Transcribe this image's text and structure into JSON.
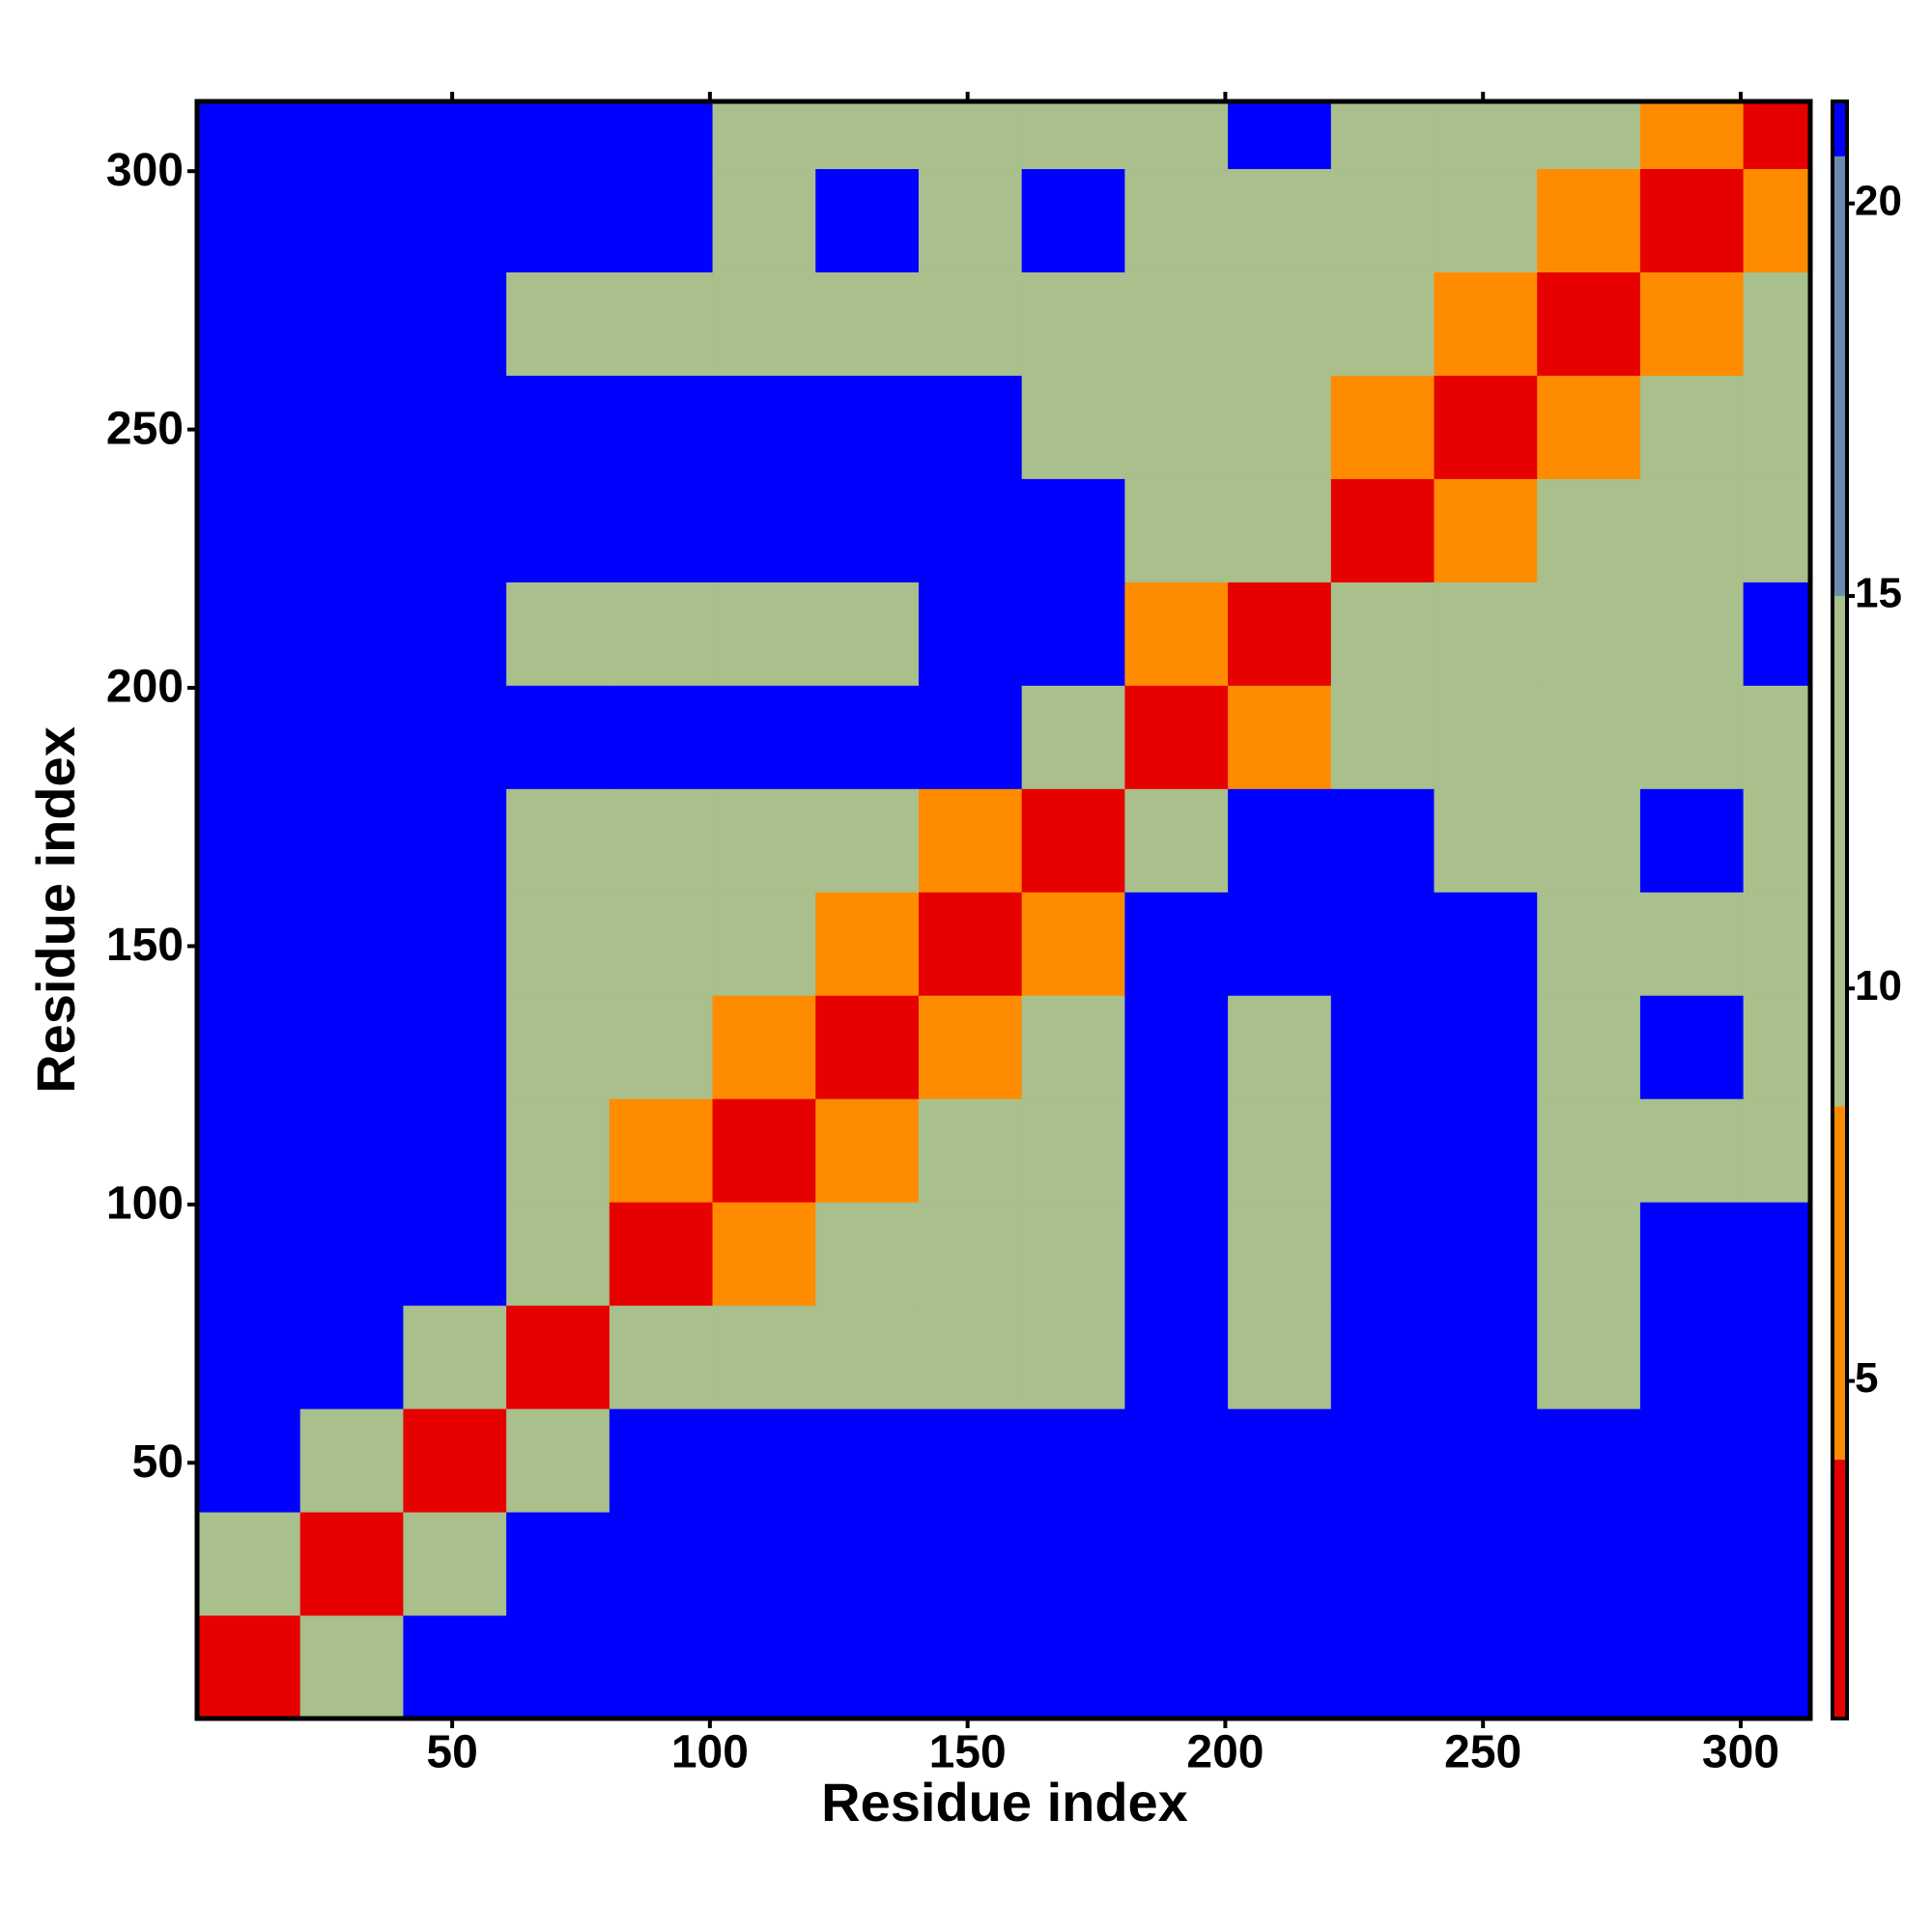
{
  "chart_data": {
    "type": "heatmap",
    "xlabel": "Residue index",
    "ylabel": "Residue index",
    "x_bins": [
      0.5,
      20.5,
      40.5,
      60.5,
      80.5,
      100.5,
      120.5,
      140.5,
      160.5,
      180.5,
      200.5,
      220.5,
      240.5,
      260.5,
      280.5,
      300.5,
      313.5
    ],
    "y_bins": [
      0.5,
      20.5,
      40.5,
      60.5,
      80.5,
      100.5,
      120.5,
      140.5,
      160.5,
      180.5,
      200.5,
      220.5,
      240.5,
      260.5,
      280.5,
      300.5,
      313.5
    ],
    "values": [
      [
        2,
        14,
        21,
        21,
        21,
        21,
        21,
        21,
        21,
        21,
        21,
        21,
        21,
        21,
        21,
        21
      ],
      [
        14,
        2,
        10,
        21,
        21,
        21,
        21,
        21,
        21,
        21,
        21,
        21,
        21,
        21,
        21,
        21
      ],
      [
        21,
        10,
        2,
        14,
        21,
        21,
        21,
        21,
        21,
        21,
        21,
        21,
        21,
        21,
        21,
        21
      ],
      [
        21,
        21,
        14,
        2,
        10,
        12,
        12,
        14,
        14,
        21,
        13,
        21,
        21,
        14,
        21,
        21
      ],
      [
        21,
        21,
        21,
        10,
        2,
        8,
        12,
        14,
        13,
        21,
        14,
        21,
        21,
        14,
        21,
        21
      ],
      [
        21,
        21,
        21,
        12,
        8,
        2,
        8,
        10,
        11,
        21,
        14,
        21,
        21,
        13,
        14,
        13
      ],
      [
        21,
        21,
        21,
        12,
        12,
        8,
        2,
        8,
        11,
        21,
        14,
        21,
        21,
        13,
        21,
        15
      ],
      [
        21,
        21,
        21,
        14,
        14,
        10,
        8,
        2,
        8,
        21,
        21,
        21,
        21,
        14,
        14,
        13
      ],
      [
        21,
        21,
        21,
        14,
        13,
        11,
        11,
        8,
        2,
        10,
        21,
        21,
        15,
        14,
        21,
        14
      ],
      [
        21,
        21,
        21,
        21,
        21,
        21,
        21,
        21,
        10,
        2,
        6,
        14,
        12,
        10,
        13,
        13
      ],
      [
        21,
        21,
        21,
        13,
        14,
        14,
        14,
        21,
        21,
        6,
        2,
        10,
        13,
        12,
        15,
        21
      ],
      [
        21,
        21,
        21,
        21,
        21,
        21,
        21,
        21,
        21,
        14,
        10,
        2,
        8,
        10,
        11,
        14
      ],
      [
        21,
        21,
        21,
        21,
        21,
        21,
        21,
        21,
        15,
        12,
        13,
        8,
        2,
        8,
        9,
        11
      ],
      [
        21,
        21,
        21,
        14,
        14,
        13,
        13,
        14,
        14,
        10,
        12,
        10,
        8,
        2,
        8,
        9
      ],
      [
        21,
        21,
        21,
        21,
        21,
        14,
        21,
        14,
        21,
        13,
        15,
        11,
        9,
        8,
        2,
        8
      ],
      [
        21,
        21,
        21,
        21,
        21,
        13,
        15,
        13,
        14,
        13,
        21,
        14,
        11,
        9,
        8,
        2
      ]
    ],
    "xlim": [
      0.5,
      313.5
    ],
    "ylim": [
      0.5,
      313.5
    ],
    "xticks": [
      50,
      100,
      150,
      200,
      250,
      300
    ],
    "yticks": [
      50,
      100,
      150,
      200,
      250,
      300
    ],
    "colormap": [
      {
        "max": 4,
        "color": "#e60000"
      },
      {
        "max": 8.5,
        "color": "#ff8c00"
      },
      {
        "max": 15,
        "color": "#a9bf8c"
      },
      {
        "max": 20.6,
        "color": "#6b8bb0"
      },
      {
        "max": 21.3,
        "color": "#0000ff"
      }
    ],
    "clim": [
      0.7,
      21.3
    ],
    "cticks": [
      5,
      10,
      15,
      20
    ]
  }
}
